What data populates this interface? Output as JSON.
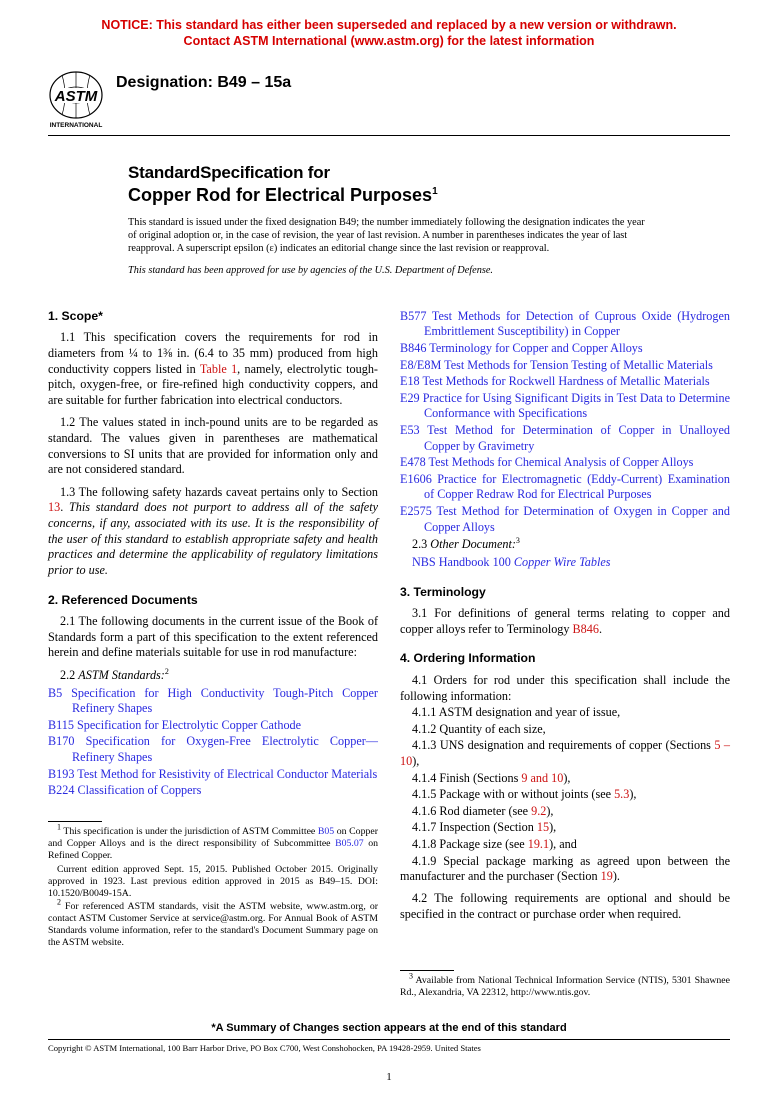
{
  "notice": {
    "line1": "NOTICE: This standard has either been superseded and replaced by a new version or withdrawn.",
    "line2": "Contact ASTM International (www.astm.org) for the latest information",
    "color": "#d60000"
  },
  "logo_text": "INTERNATIONAL",
  "designation_label": "Designation: B49 – 15a",
  "title": {
    "pre": "StandardSpecification for",
    "main": "Copper Rod for Electrical Purposes",
    "sup": "1"
  },
  "issue_note": "This standard is issued under the fixed designation B49; the number immediately following the designation indicates the year of original adoption or, in the case of revision, the year of last revision. A number in parentheses indicates the year of last reapproval. A superscript epsilon (ε) indicates an editorial change since the last revision or reapproval.",
  "dod_note": "This standard has been approved for use by agencies of the U.S. Department of Defense.",
  "sec1_head": "1. Scope*",
  "sec1_1_a": "1.1 This specification covers the requirements for rod in diameters from ¼ to 1⅜ in. (6.4 to 35 mm) produced from high conductivity coppers listed in ",
  "sec1_1_table": "Table 1",
  "sec1_1_b": ", namely, electrolytic tough-pitch, oxygen-free, or fire-refined high conductivity coppers, and are suitable for further fabrication into electrical conductors.",
  "sec1_2": "1.2 The values stated in inch-pound units are to be regarded as standard. The values given in parentheses are mathematical conversions to SI units that are provided for information only and are not considered standard.",
  "sec1_3a": "1.3 The following safety hazards caveat pertains only to Section ",
  "sec1_3_section": "13",
  "sec1_3b": ". ",
  "sec1_3_italic": "This standard does not purport to address all of the safety concerns, if any, associated with its use. It is the responsibility of the user of this standard to establish appropriate safety and health practices and determine the applicability of regulatory limitations prior to use.",
  "sec2_head": "2. Referenced Documents",
  "sec2_1": "2.1 The following documents in the current issue of the Book of Standards form a part of this specification to the extent referenced herein and define materials suitable for use in rod manufacture:",
  "sec2_2_label_a": "2.2 ",
  "sec2_2_label_b": "ASTM Standards:",
  "sec2_2_sup": "2",
  "refs_left": [
    {
      "code": "B5",
      "title": "Specification for High Conductivity Tough-Pitch Copper Refinery Shapes"
    },
    {
      "code": "B115",
      "title": "Specification for Electrolytic Copper Cathode"
    },
    {
      "code": "B170",
      "title": "Specification for Oxygen-Free Electrolytic Copper—Refinery Shapes"
    },
    {
      "code": "B193",
      "title": "Test Method for Resistivity of Electrical Conductor Materials"
    },
    {
      "code": "B224",
      "title": "Classification of Coppers"
    }
  ],
  "refs_right": [
    {
      "code": "B577",
      "title": "Test Methods for Detection of Cuprous Oxide (Hydrogen Embrittlement Susceptibility) in Copper"
    },
    {
      "code": "B846",
      "title": "Terminology for Copper and Copper Alloys"
    },
    {
      "code": "E8/E8M",
      "title": "Test Methods for Tension Testing of Metallic Materials"
    },
    {
      "code": "E18",
      "title": "Test Methods for Rockwell Hardness of Metallic Materials"
    },
    {
      "code": "E29",
      "title": "Practice for Using Significant Digits in Test Data to Determine Conformance with Specifications"
    },
    {
      "code": "E53",
      "title": "Test Method for Determination of Copper in Unalloyed Copper by Gravimetry"
    },
    {
      "code": "E478",
      "title": "Test Methods for Chemical Analysis of Copper Alloys"
    },
    {
      "code": "E1606",
      "title": "Practice for Electromagnetic (Eddy-Current) Examination of Copper Redraw Rod for Electrical Purposes"
    },
    {
      "code": "E2575",
      "title": "Test Method for Determination of Oxygen in Copper and Copper Alloys"
    }
  ],
  "sec2_3_a": "2.3 ",
  "sec2_3_b": "Other Document:",
  "sec2_3_sup": "3",
  "other_doc_code": "NBS Handbook 100",
  "other_doc_title": "Copper Wire Tables",
  "sec3_head": "3. Terminology",
  "sec3_1_a": "3.1 For definitions of general terms relating to copper and copper alloys refer to Terminology ",
  "sec3_1_ref": "B846",
  "sec3_1_b": ".",
  "sec4_head": "4. Ordering Information",
  "sec4_1": "4.1 Orders for rod under this specification shall include the following information:",
  "items": {
    "i411": "4.1.1 ASTM designation and year of issue,",
    "i412": "4.1.2 Quantity of each size,",
    "i413a": "4.1.3 UNS designation and requirements of copper (Sections ",
    "i413ref": "5 – 10",
    "i413b": "),",
    "i414a": "4.1.4 Finish (Sections ",
    "i414ref": "9 and 10",
    "i414b": "),",
    "i415a": "4.1.5 Package with or without joints (see ",
    "i415ref": "5.3",
    "i415b": "),",
    "i416a": "4.1.6 Rod diameter (see ",
    "i416ref": "9.2",
    "i416b": "),",
    "i417a": "4.1.7 Inspection (Section ",
    "i417ref": "15",
    "i417b": "),",
    "i418a": "4.1.8 Package size (see ",
    "i418ref": "19.1",
    "i418b": "), and",
    "i419a": "4.1.9 Special package marking as agreed upon between the manufacturer and the purchaser (Section ",
    "i419ref": "19",
    "i419b": ")."
  },
  "sec4_2": "4.2 The following requirements are optional and should be specified in the contract or purchase order when required.",
  "fn1_a": " This specification is under the jurisdiction of ASTM Committee ",
  "fn1_ref1": "B05",
  "fn1_b": " on Copper and Copper Alloys and is the direct responsibility of Subcommittee ",
  "fn1_ref2": "B05.07",
  "fn1_c": " on Refined Copper.",
  "fn1_d": "Current edition approved Sept. 15, 2015. Published October 2015. Originally approved in 1923. Last previous edition approved in 2015 as B49–15. DOI: 10.1520/B0049-15A.",
  "fn2": " For referenced ASTM standards, visit the ASTM website, www.astm.org, or contact ASTM Customer Service at service@astm.org. For Annual Book of ASTM Standards volume information, refer to the standard's Document Summary page on the ASTM website.",
  "fn3": " Available from National Technical Information Service (NTIS), 5301 Shawnee Rd., Alexandria, VA 22312, http://www.ntis.gov.",
  "changes_note": "*A Summary of Changes section appears at the end of this standard",
  "copyright": "Copyright © ASTM International, 100 Barr Harbor Drive, PO Box C700, West Conshohocken, PA 19428-2959. United States",
  "page_number": "1",
  "link_color": "#2a2ae0",
  "ref_color": "#c11"
}
